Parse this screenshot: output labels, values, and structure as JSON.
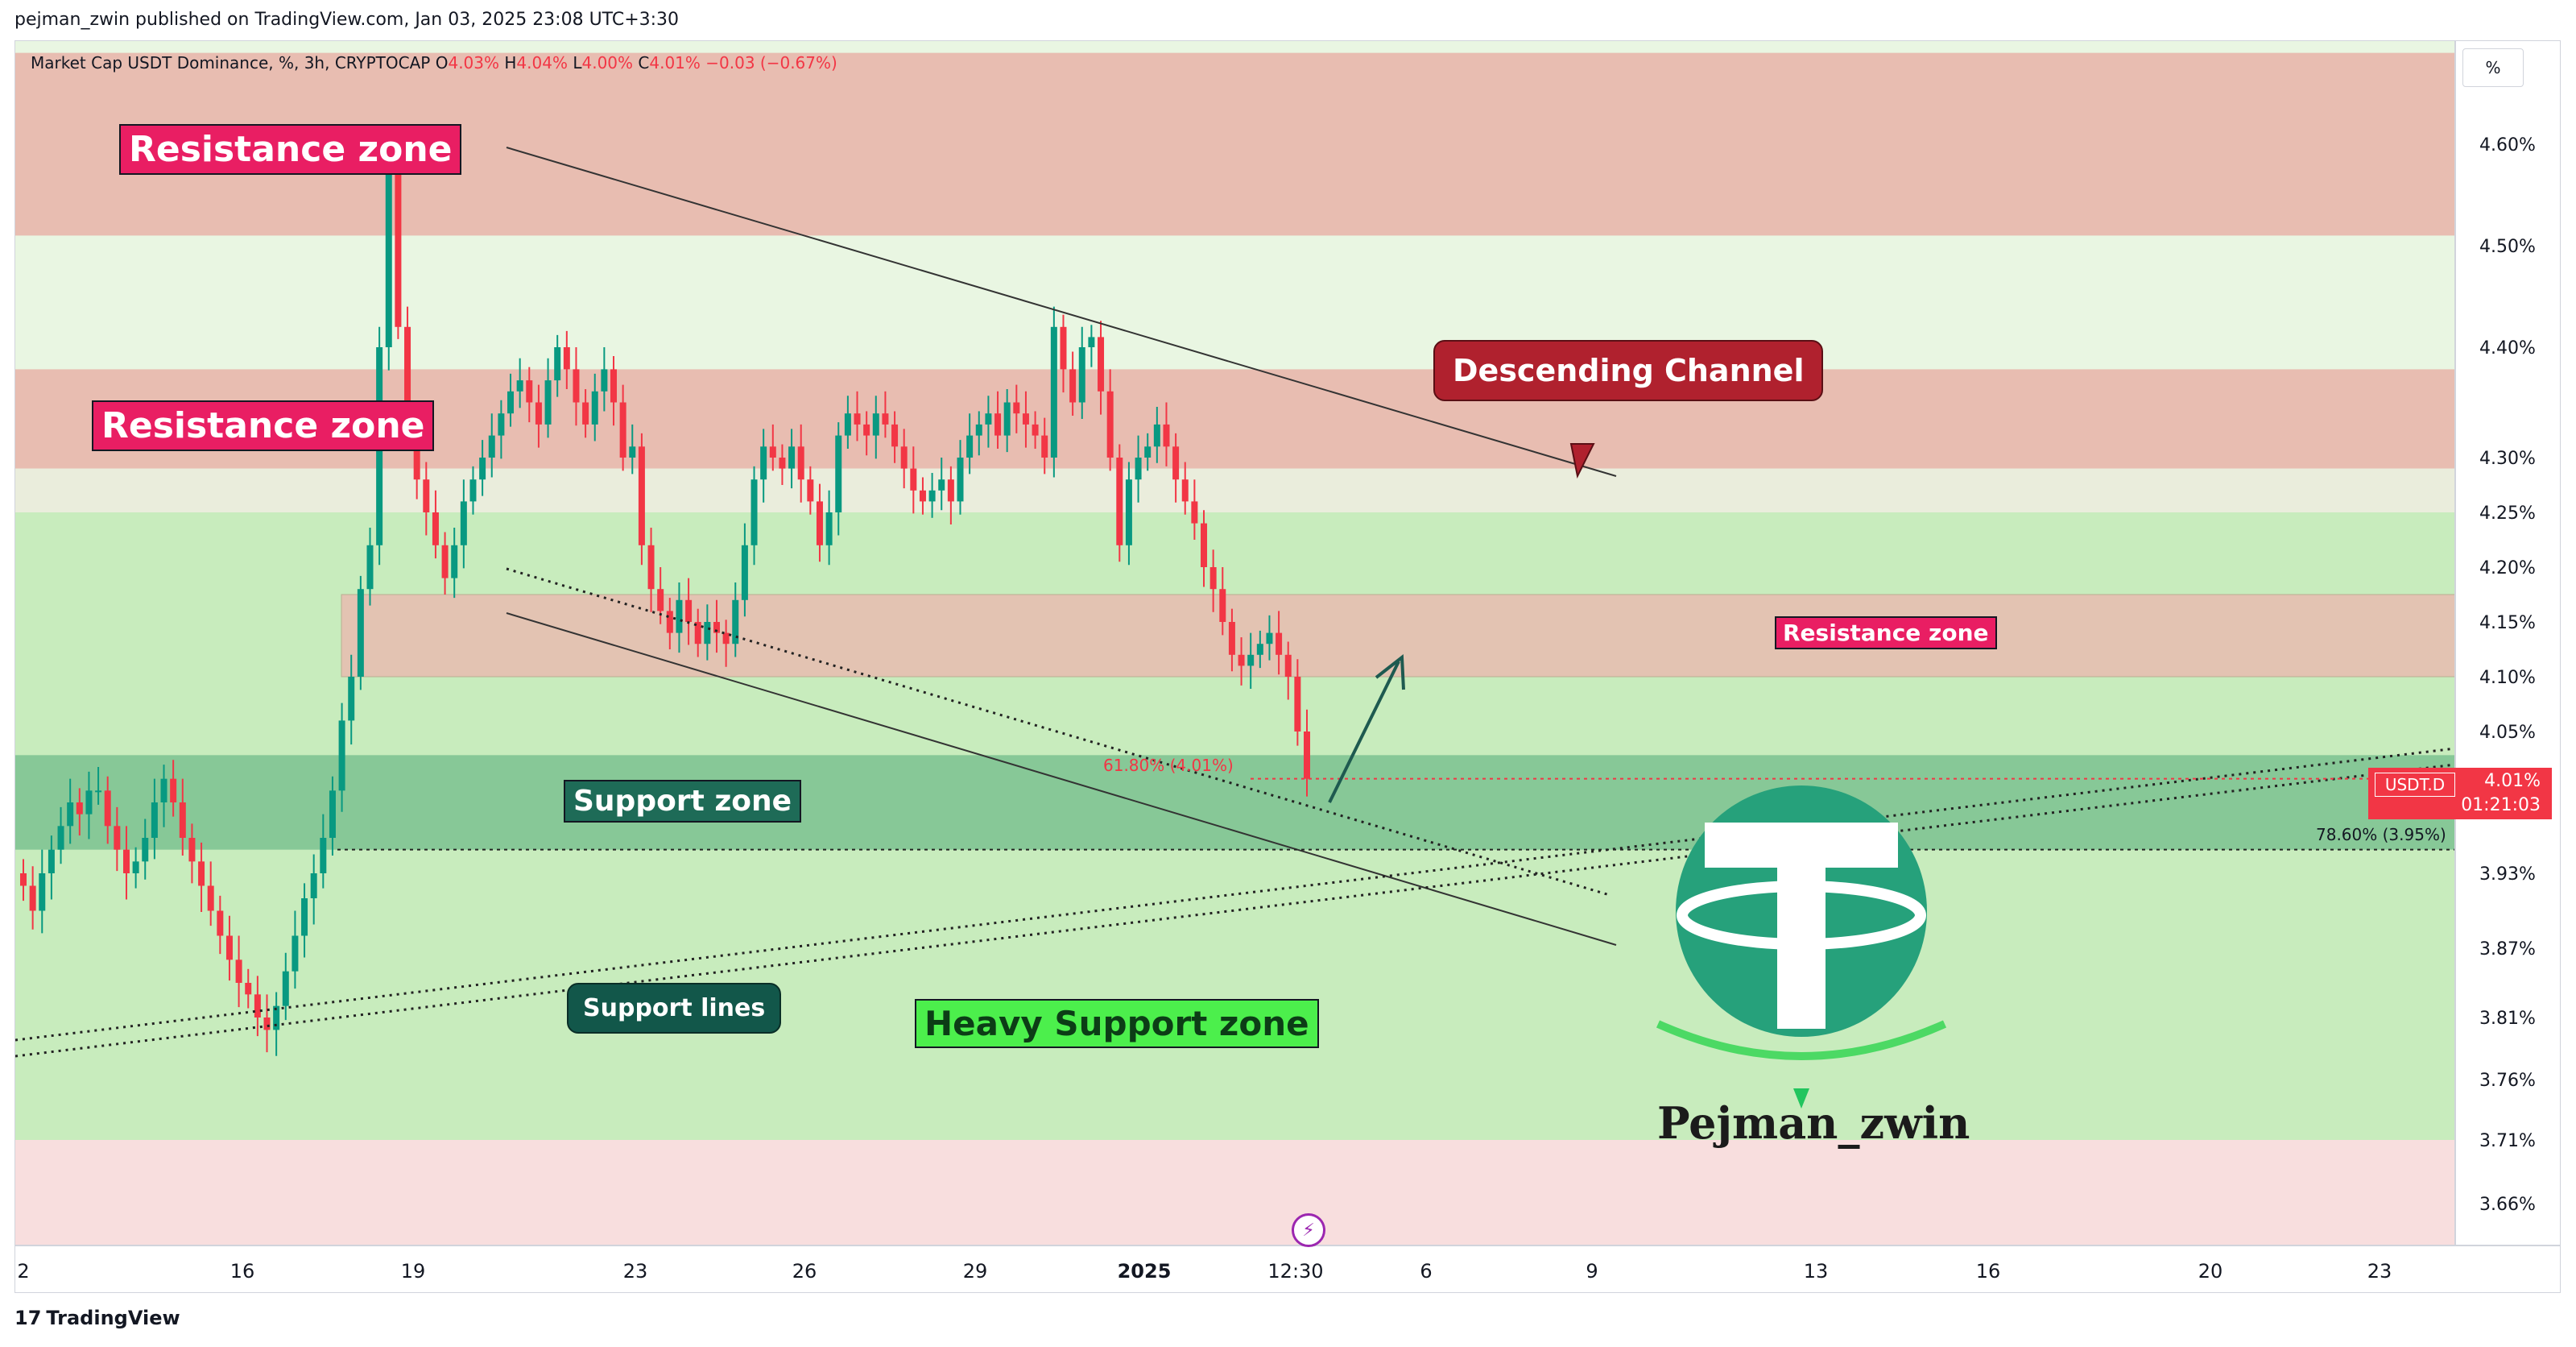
{
  "publisher": "pejman_zwin published on TradingView.com, Jan 03, 2025 23:08 UTC+3:30",
  "symbol_info": {
    "name": "Market Cap USDT Dominance, %, 3h, CRYPTOCAP",
    "o_label": "O",
    "o_value": "4.03%",
    "h_label": "H",
    "h_value": "4.04%",
    "l_label": "L",
    "l_value": "4.00%",
    "c_label": "C",
    "c_value": "4.01%",
    "change": "−0.03 (−0.67%)"
  },
  "scale_button": "%",
  "price_tag": {
    "symbol": "USDT.D",
    "value": "4.01%",
    "countdown": "01:21:03"
  },
  "annotations": {
    "resistance_top": "Resistance zone",
    "resistance_mid": "Resistance zone",
    "resistance_small": "Resistance zone",
    "descending_channel": "Descending Channel",
    "support_zone": "Support zone",
    "support_lines": "Support lines",
    "heavy_support": "Heavy Support zone",
    "fib_618": "61.80% (4.01%)",
    "fib_786": "78.60% (3.95%)"
  },
  "watermark": {
    "text": "Pejman_zwin",
    "logo": "tether-logo"
  },
  "footer": {
    "brand": "TradingView",
    "brand_icon": "tradingview-logo-icon"
  },
  "colors": {
    "up": "#089981",
    "down": "#f23645",
    "resistance_band": "#e8bdb1",
    "support_band": "#87c897",
    "heavy_support_band": "#c8ecbd",
    "accent_red": "#e91e63",
    "tether_green": "#26a17b"
  },
  "chart_data": {
    "type": "candlestick",
    "title": "Market Cap USDT Dominance, %, 3h, CRYPTOCAP",
    "x_ticks": [
      "2",
      "16",
      "19",
      "23",
      "26",
      "29",
      "2025",
      "12:30",
      "6",
      "9",
      "13",
      "16",
      "20",
      "23"
    ],
    "y_ticks": [
      "4.60%",
      "4.50%",
      "4.40%",
      "4.30%",
      "4.25%",
      "4.20%",
      "4.15%",
      "4.10%",
      "4.05%",
      "3.93%",
      "3.87%",
      "3.81%",
      "3.76%",
      "3.71%",
      "3.66%"
    ],
    "y_range": [
      3.63,
      4.69
    ],
    "last_price": 4.01,
    "ohlc_last": {
      "open": 4.03,
      "high": 4.04,
      "low": 4.0,
      "close": 4.01
    },
    "zones": [
      {
        "name": "Resistance zone",
        "from": 4.51,
        "to": 4.69
      },
      {
        "name": "Resistance zone",
        "from": 4.29,
        "to": 4.38
      },
      {
        "name": "Resistance zone",
        "from": 4.1,
        "to": 4.175
      },
      {
        "name": "Support zone",
        "from": 3.95,
        "to": 4.03
      },
      {
        "name": "Heavy Support zone",
        "from": 3.71,
        "to": 4.25
      }
    ],
    "fib_levels": [
      {
        "label": "61.80%",
        "value": 4.01
      },
      {
        "label": "78.60%",
        "value": 3.95
      }
    ],
    "closes": [
      3.92,
      3.9,
      3.93,
      3.95,
      3.97,
      3.99,
      3.98,
      4.0,
      4.0,
      3.97,
      3.95,
      3.93,
      3.94,
      3.96,
      3.99,
      4.01,
      3.99,
      3.96,
      3.94,
      3.92,
      3.9,
      3.88,
      3.86,
      3.84,
      3.83,
      3.81,
      3.8,
      3.82,
      3.85,
      3.88,
      3.91,
      3.93,
      3.96,
      4.0,
      4.06,
      4.1,
      4.18,
      4.22,
      4.4,
      4.57,
      4.42,
      4.33,
      4.28,
      4.25,
      4.22,
      4.19,
      4.22,
      4.26,
      4.28,
      4.3,
      4.32,
      4.34,
      4.36,
      4.37,
      4.35,
      4.33,
      4.37,
      4.4,
      4.38,
      4.35,
      4.33,
      4.36,
      4.38,
      4.35,
      4.3,
      4.31,
      4.22,
      4.18,
      4.16,
      4.14,
      4.17,
      4.15,
      4.13,
      4.15,
      4.14,
      4.13,
      4.17,
      4.22,
      4.28,
      4.31,
      4.3,
      4.29,
      4.31,
      4.28,
      4.26,
      4.22,
      4.25,
      4.32,
      4.34,
      4.33,
      4.32,
      4.34,
      4.33,
      4.31,
      4.29,
      4.27,
      4.26,
      4.27,
      4.28,
      4.26,
      4.3,
      4.32,
      4.33,
      4.34,
      4.32,
      4.35,
      4.34,
      4.33,
      4.32,
      4.3,
      4.42,
      4.38,
      4.35,
      4.4,
      4.41,
      4.36,
      4.3,
      4.22,
      4.28,
      4.3,
      4.31,
      4.33,
      4.31,
      4.28,
      4.26,
      4.24,
      4.2,
      4.18,
      4.15,
      4.12,
      4.11,
      4.12,
      4.13,
      4.14,
      4.12,
      4.1,
      4.05,
      4.01
    ]
  }
}
